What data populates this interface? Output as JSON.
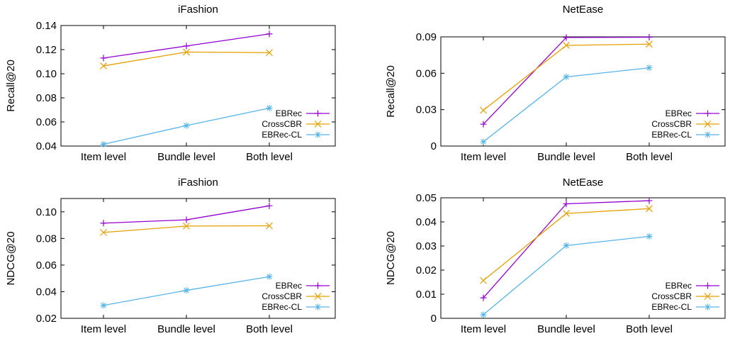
{
  "chart_data": [
    {
      "type": "line",
      "title": "iFashion",
      "xlabel": "",
      "ylabel": "Recall@20",
      "categories": [
        "Item level",
        "Bundle level",
        "Both level"
      ],
      "ylim": [
        0.04,
        0.14
      ],
      "yticks": [
        "0.04",
        "0.06",
        "0.08",
        "0.10",
        "0.12",
        "0.14"
      ],
      "grid": false,
      "legend": "bottom-right",
      "series": [
        {
          "name": "EBRec",
          "color": "#9400d3",
          "marker": "plus",
          "values": [
            0.113,
            0.123,
            0.133
          ]
        },
        {
          "name": "CrossCBR",
          "color": "#e69f00",
          "marker": "cross",
          "values": [
            0.1065,
            0.118,
            0.1175
          ]
        },
        {
          "name": "EBRec-CL",
          "color": "#56b4e9",
          "marker": "star",
          "values": [
            0.0415,
            0.057,
            0.0715
          ]
        }
      ]
    },
    {
      "type": "line",
      "title": "NetEase",
      "xlabel": "",
      "ylabel": "Recall@20",
      "categories": [
        "Item level",
        "Bundle level",
        "Both level"
      ],
      "ylim": [
        0,
        0.09
      ],
      "yticks": [
        "0",
        "0.03",
        "0.06",
        "0.09"
      ],
      "grid": false,
      "legend": "bottom-right",
      "series": [
        {
          "name": "EBRec",
          "color": "#9400d3",
          "marker": "plus",
          "values": [
            0.018,
            0.0895,
            0.0897
          ]
        },
        {
          "name": "CrossCBR",
          "color": "#e69f00",
          "marker": "cross",
          "values": [
            0.0295,
            0.083,
            0.084
          ]
        },
        {
          "name": "EBRec-CL",
          "color": "#56b4e9",
          "marker": "star",
          "values": [
            0.0035,
            0.057,
            0.0645
          ]
        }
      ]
    },
    {
      "type": "line",
      "title": "iFashion",
      "xlabel": "",
      "ylabel": "NDCG@20",
      "categories": [
        "Item level",
        "Bundle level",
        "Both level"
      ],
      "ylim": [
        0.02,
        0.11
      ],
      "yticks": [
        "0.02",
        "0.04",
        "0.06",
        "0.08",
        "0.10"
      ],
      "grid": false,
      "legend": "bottom-right",
      "series": [
        {
          "name": "EBRec",
          "color": "#9400d3",
          "marker": "plus",
          "values": [
            0.0915,
            0.094,
            0.1045
          ]
        },
        {
          "name": "CrossCBR",
          "color": "#e69f00",
          "marker": "cross",
          "values": [
            0.0845,
            0.0893,
            0.0895
          ]
        },
        {
          "name": "EBRec-CL",
          "color": "#56b4e9",
          "marker": "star",
          "values": [
            0.0297,
            0.041,
            0.0513
          ]
        }
      ]
    },
    {
      "type": "line",
      "title": "NetEase",
      "xlabel": "",
      "ylabel": "NDCG@20",
      "categories": [
        "Item level",
        "Bundle level",
        "Both level"
      ],
      "ylim": [
        0,
        0.05
      ],
      "yticks": [
        "0",
        "0.01",
        "0.02",
        "0.03",
        "0.04",
        "0.05"
      ],
      "grid": false,
      "legend": "bottom-right",
      "series": [
        {
          "name": "EBRec",
          "color": "#9400d3",
          "marker": "plus",
          "values": [
            0.0085,
            0.0475,
            0.0488
          ]
        },
        {
          "name": "CrossCBR",
          "color": "#e69f00",
          "marker": "cross",
          "values": [
            0.0157,
            0.0435,
            0.0455
          ]
        },
        {
          "name": "EBRec-CL",
          "color": "#56b4e9",
          "marker": "star",
          "values": [
            0.0015,
            0.0302,
            0.034
          ]
        }
      ]
    }
  ]
}
